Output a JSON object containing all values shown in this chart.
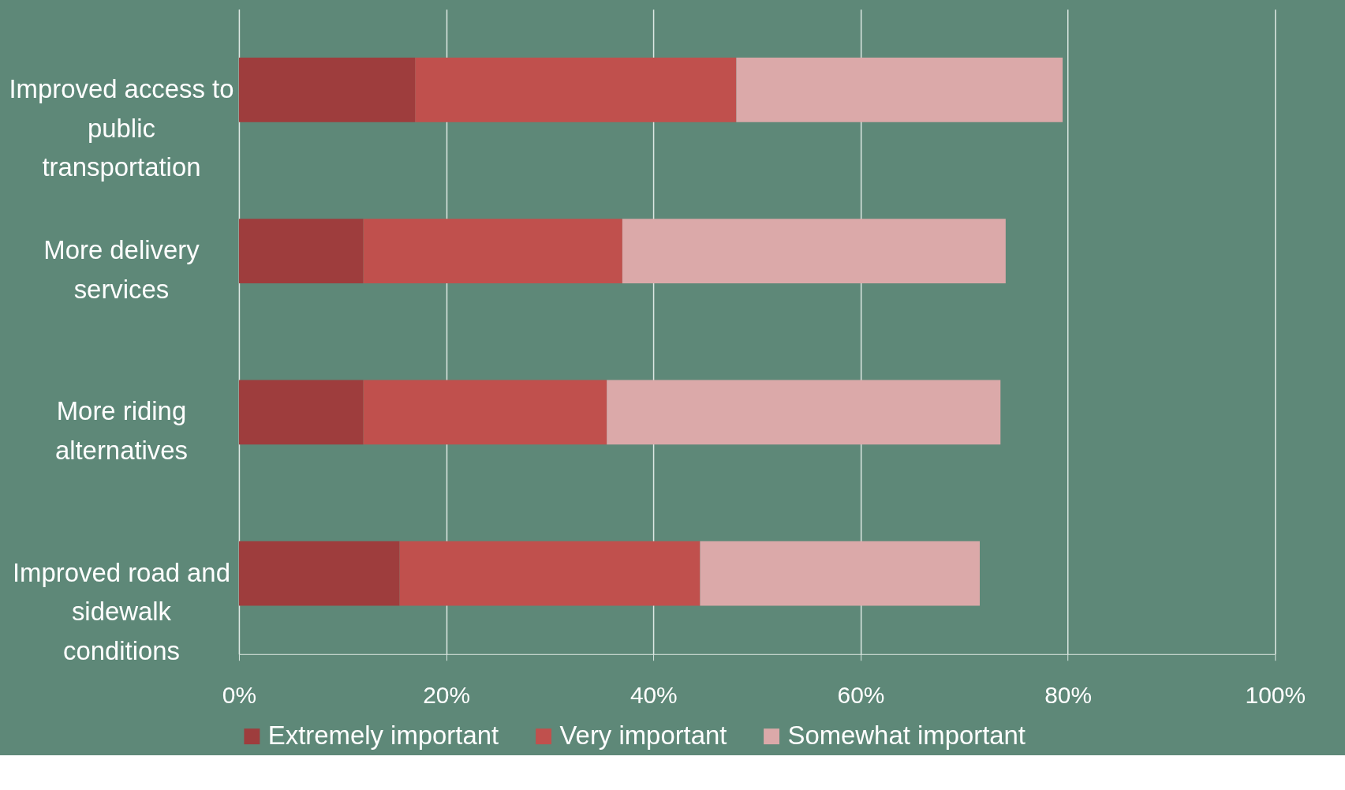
{
  "chart_data": {
    "type": "bar",
    "orientation": "horizontal",
    "stacked": true,
    "categories": [
      "Improved access to public transportation",
      "More delivery services",
      "More riding alternatives",
      "Improved road and sidewalk conditions"
    ],
    "series": [
      {
        "name": "Extremely important",
        "color": "#9e3d3d",
        "values": [
          17,
          12,
          12,
          15.5
        ]
      },
      {
        "name": "Very important",
        "color": "#c0504d",
        "values": [
          31,
          25,
          23.5,
          29
        ]
      },
      {
        "name": "Somewhat important",
        "color": "#dba9a9",
        "values": [
          31.5,
          37,
          38,
          27
        ]
      }
    ],
    "xlim": [
      0,
      100
    ],
    "xticks": [
      {
        "value": 0,
        "label": "0%"
      },
      {
        "value": 20,
        "label": "20%"
      },
      {
        "value": 40,
        "label": "40%"
      },
      {
        "value": 60,
        "label": "60%"
      },
      {
        "value": 80,
        "label": "80%"
      },
      {
        "value": 100,
        "label": "100%"
      }
    ],
    "grid": "x",
    "legend": "bottom"
  }
}
